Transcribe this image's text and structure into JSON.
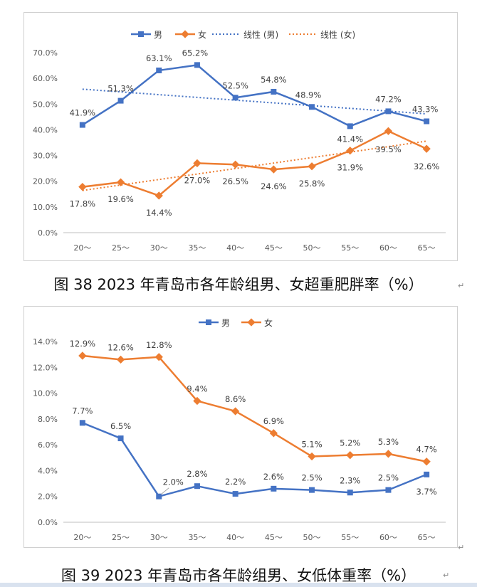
{
  "chart_data": [
    {
      "type": "line",
      "title": "",
      "xlabel": "",
      "ylabel": "",
      "categories": [
        "20～",
        "25～",
        "30～",
        "35～",
        "40～",
        "45～",
        "50～",
        "55～",
        "60～",
        "65～"
      ],
      "ylim": [
        0,
        70
      ],
      "yticks": [
        "0.0%",
        "10.0%",
        "20.0%",
        "30.0%",
        "40.0%",
        "50.0%",
        "60.0%",
        "70.0%"
      ],
      "grid": false,
      "legend_position": "top",
      "series": [
        {
          "name": "男",
          "color": "#4472c4",
          "values": [
            41.9,
            51.3,
            63.1,
            65.2,
            52.5,
            54.8,
            48.9,
            41.4,
            47.2,
            43.3
          ],
          "labels": [
            "41.9%",
            "51.3%",
            "63.1%",
            "65.2%",
            "52.5%",
            "54.8%",
            "48.9%",
            "41.4%",
            "47.2%",
            "43.3%"
          ]
        },
        {
          "name": "女",
          "color": "#ed7d31",
          "values": [
            17.8,
            19.6,
            14.4,
            27.0,
            26.5,
            24.6,
            25.8,
            31.9,
            39.5,
            32.6
          ],
          "labels": [
            "17.8%",
            "19.6%",
            "14.4%",
            "27.0%",
            "26.5%",
            "24.6%",
            "25.8%",
            "31.9%",
            "39.5%",
            "32.6%"
          ]
        }
      ],
      "trendlines": [
        {
          "name": "线性 (男)",
          "color": "#4472c4",
          "start": 55.8,
          "end": 46.2
        },
        {
          "name": "线性 (女)",
          "color": "#ed7d31",
          "start": 16.4,
          "end": 35.6
        }
      ]
    },
    {
      "type": "line",
      "title": "",
      "xlabel": "",
      "ylabel": "",
      "categories": [
        "20～",
        "25～",
        "30～",
        "35～",
        "40～",
        "45～",
        "50～",
        "55～",
        "60～",
        "65～"
      ],
      "ylim": [
        0,
        14
      ],
      "yticks": [
        "0.0%",
        "2.0%",
        "4.0%",
        "6.0%",
        "8.0%",
        "10.0%",
        "12.0%",
        "14.0%"
      ],
      "grid": false,
      "legend_position": "top",
      "series": [
        {
          "name": "男",
          "color": "#4472c4",
          "values": [
            7.7,
            6.5,
            2.0,
            2.8,
            2.2,
            2.6,
            2.5,
            2.3,
            2.5,
            3.7
          ],
          "labels": [
            "7.7%",
            "6.5%",
            "2.0%",
            "2.8%",
            "2.2%",
            "2.6%",
            "2.5%",
            "2.3%",
            "2.5%",
            "3.7%"
          ]
        },
        {
          "name": "女",
          "color": "#ed7d31",
          "values": [
            12.9,
            12.6,
            12.8,
            9.4,
            8.6,
            6.9,
            5.1,
            5.2,
            5.3,
            4.7
          ],
          "labels": [
            "12.9%",
            "12.6%",
            "12.8%",
            "9.4%",
            "8.6%",
            "6.9%",
            "5.1%",
            "5.2%",
            "5.3%",
            "4.7%"
          ]
        }
      ]
    }
  ],
  "captions": {
    "figure38": "图 38 2023 年青岛市各年龄组男、女超重肥胖率（%）",
    "figure39": "图 39 2023 年青岛市各年龄组男、女低体重率（%）"
  }
}
